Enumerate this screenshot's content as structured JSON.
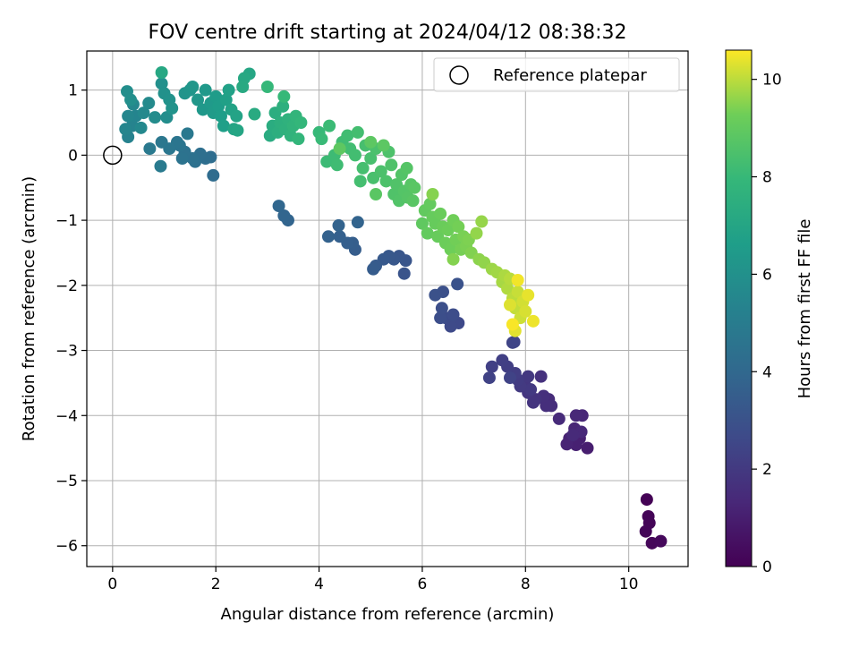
{
  "chart_data": {
    "type": "scatter",
    "title": "FOV centre drift starting at 2024/04/12 08:38:32",
    "xlabel": "Angular distance from reference (arcmin)",
    "ylabel": "Rotation from reference (arcmin)",
    "xlim": [
      -0.5,
      11.15
    ],
    "ylim": [
      -6.32,
      1.6
    ],
    "xticks": [
      0,
      2,
      4,
      6,
      8,
      10
    ],
    "yticks": [
      -6,
      -5,
      -4,
      -3,
      -2,
      -1,
      0,
      1
    ],
    "xtick_labels": [
      "0",
      "2",
      "4",
      "6",
      "8",
      "10"
    ],
    "ytick_labels": [
      "−6",
      "−5",
      "−4",
      "−3",
      "−2",
      "−1",
      "0",
      "1"
    ],
    "grid": true,
    "legend": {
      "position": "top-right",
      "entries": [
        {
          "label": "Reference platepar",
          "marker": "open-circle"
        }
      ]
    },
    "reference_point": {
      "x": 0,
      "y": 0
    },
    "colorbar": {
      "label": "Hours from first FF file",
      "colormap": "viridis",
      "range": [
        0,
        10.6
      ],
      "ticks": [
        0,
        2,
        4,
        6,
        8,
        10
      ],
      "tick_labels": [
        "0",
        "2",
        "4",
        "6",
        "8",
        "10"
      ]
    },
    "points": [
      {
        "x": 10.35,
        "y": -5.29,
        "t": 0.05
      },
      {
        "x": 10.38,
        "y": -5.55,
        "t": 0.1
      },
      {
        "x": 10.4,
        "y": -5.65,
        "t": 0.12
      },
      {
        "x": 10.33,
        "y": -5.78,
        "t": 0.15
      },
      {
        "x": 10.45,
        "y": -5.96,
        "t": 0.2
      },
      {
        "x": 10.62,
        "y": -5.93,
        "t": 0.25
      },
      {
        "x": 9.2,
        "y": -4.5,
        "t": 1.0
      },
      {
        "x": 9.05,
        "y": -4.35,
        "t": 1.05
      },
      {
        "x": 8.98,
        "y": -4.45,
        "t": 1.1
      },
      {
        "x": 8.85,
        "y": -4.35,
        "t": 1.15
      },
      {
        "x": 8.8,
        "y": -4.44,
        "t": 1.2
      },
      {
        "x": 8.95,
        "y": -4.2,
        "t": 1.25
      },
      {
        "x": 9.1,
        "y": -4.0,
        "t": 1.3
      },
      {
        "x": 8.98,
        "y": -4.0,
        "t": 1.35
      },
      {
        "x": 9.08,
        "y": -4.25,
        "t": 1.38
      },
      {
        "x": 8.92,
        "y": -4.3,
        "t": 1.4
      },
      {
        "x": 8.65,
        "y": -4.05,
        "t": 1.45
      },
      {
        "x": 8.45,
        "y": -3.75,
        "t": 1.5
      },
      {
        "x": 8.5,
        "y": -3.85,
        "t": 1.55
      },
      {
        "x": 8.4,
        "y": -3.85,
        "t": 1.6
      },
      {
        "x": 8.35,
        "y": -3.7,
        "t": 1.65
      },
      {
        "x": 8.3,
        "y": -3.4,
        "t": 1.7
      },
      {
        "x": 8.2,
        "y": -3.75,
        "t": 1.75
      },
      {
        "x": 8.15,
        "y": -3.8,
        "t": 1.8
      },
      {
        "x": 8.05,
        "y": -3.65,
        "t": 1.85
      },
      {
        "x": 8.0,
        "y": -3.55,
        "t": 1.9
      },
      {
        "x": 8.05,
        "y": -3.4,
        "t": 1.95
      },
      {
        "x": 8.1,
        "y": -3.6,
        "t": 2.0
      },
      {
        "x": 7.9,
        "y": -3.55,
        "t": 2.05
      },
      {
        "x": 7.85,
        "y": -3.45,
        "t": 2.1
      },
      {
        "x": 7.8,
        "y": -3.35,
        "t": 2.15
      },
      {
        "x": 7.65,
        "y": -3.25,
        "t": 2.2
      },
      {
        "x": 7.55,
        "y": -3.15,
        "t": 2.25
      },
      {
        "x": 7.35,
        "y": -3.25,
        "t": 2.3
      },
      {
        "x": 7.3,
        "y": -3.42,
        "t": 2.35
      },
      {
        "x": 7.7,
        "y": -3.42,
        "t": 2.4
      },
      {
        "x": 7.75,
        "y": -2.88,
        "t": 2.45
      },
      {
        "x": 7.78,
        "y": -2.87,
        "t": 2.5
      },
      {
        "x": 6.62,
        "y": -2.55,
        "t": 2.6
      },
      {
        "x": 6.7,
        "y": -2.58,
        "t": 2.65
      },
      {
        "x": 6.55,
        "y": -2.63,
        "t": 2.7
      },
      {
        "x": 6.45,
        "y": -2.5,
        "t": 2.75
      },
      {
        "x": 6.6,
        "y": -2.45,
        "t": 2.8
      },
      {
        "x": 6.35,
        "y": -2.5,
        "t": 2.85
      },
      {
        "x": 6.38,
        "y": -2.35,
        "t": 2.9
      },
      {
        "x": 6.4,
        "y": -2.1,
        "t": 2.95
      },
      {
        "x": 6.25,
        "y": -2.15,
        "t": 3.0
      },
      {
        "x": 6.68,
        "y": -1.98,
        "t": 3.05
      },
      {
        "x": 5.65,
        "y": -1.82,
        "t": 3.1
      },
      {
        "x": 5.68,
        "y": -1.62,
        "t": 3.15
      },
      {
        "x": 5.55,
        "y": -1.55,
        "t": 3.2
      },
      {
        "x": 5.45,
        "y": -1.6,
        "t": 3.25
      },
      {
        "x": 5.35,
        "y": -1.55,
        "t": 3.3
      },
      {
        "x": 5.25,
        "y": -1.6,
        "t": 3.35
      },
      {
        "x": 5.1,
        "y": -1.7,
        "t": 3.4
      },
      {
        "x": 5.05,
        "y": -1.75,
        "t": 3.45
      },
      {
        "x": 4.7,
        "y": -1.45,
        "t": 3.5
      },
      {
        "x": 4.65,
        "y": -1.35,
        "t": 3.55
      },
      {
        "x": 4.55,
        "y": -1.35,
        "t": 3.6
      },
      {
        "x": 4.4,
        "y": -1.25,
        "t": 3.65
      },
      {
        "x": 4.18,
        "y": -1.25,
        "t": 3.7
      },
      {
        "x": 4.38,
        "y": -1.08,
        "t": 3.75
      },
      {
        "x": 4.75,
        "y": -1.03,
        "t": 3.8
      },
      {
        "x": 3.4,
        "y": -1.0,
        "t": 3.85
      },
      {
        "x": 3.32,
        "y": -0.93,
        "t": 3.9
      },
      {
        "x": 3.22,
        "y": -0.78,
        "t": 3.95
      },
      {
        "x": 1.95,
        "y": -0.31,
        "t": 4.2
      },
      {
        "x": 1.9,
        "y": -0.03,
        "t": 4.25
      },
      {
        "x": 1.8,
        "y": -0.05,
        "t": 4.3
      },
      {
        "x": 1.7,
        "y": 0.02,
        "t": 4.35
      },
      {
        "x": 1.6,
        "y": -0.1,
        "t": 4.4
      },
      {
        "x": 1.55,
        "y": -0.05,
        "t": 4.45
      },
      {
        "x": 1.4,
        "y": 0.05,
        "t": 4.5
      },
      {
        "x": 1.35,
        "y": -0.05,
        "t": 4.55
      },
      {
        "x": 1.3,
        "y": 0.15,
        "t": 4.6
      },
      {
        "x": 1.25,
        "y": 0.2,
        "t": 4.65
      },
      {
        "x": 1.1,
        "y": 0.1,
        "t": 4.7
      },
      {
        "x": 0.95,
        "y": 0.2,
        "t": 4.75
      },
      {
        "x": 1.45,
        "y": 0.33,
        "t": 4.8
      },
      {
        "x": 0.72,
        "y": 0.1,
        "t": 4.85
      },
      {
        "x": 0.93,
        "y": -0.17,
        "t": 4.9
      },
      {
        "x": 0.3,
        "y": 0.28,
        "t": 5.3
      },
      {
        "x": 0.38,
        "y": 0.45,
        "t": 5.35
      },
      {
        "x": 0.45,
        "y": 0.6,
        "t": 5.4
      },
      {
        "x": 0.25,
        "y": 0.4,
        "t": 5.45
      },
      {
        "x": 0.3,
        "y": 0.6,
        "t": 5.5
      },
      {
        "x": 0.4,
        "y": 0.78,
        "t": 5.55
      },
      {
        "x": 0.55,
        "y": 0.42,
        "t": 5.6
      },
      {
        "x": 0.6,
        "y": 0.65,
        "t": 5.65
      },
      {
        "x": 0.7,
        "y": 0.8,
        "t": 5.7
      },
      {
        "x": 0.82,
        "y": 0.58,
        "t": 5.75
      },
      {
        "x": 1.05,
        "y": 0.58,
        "t": 5.8
      },
      {
        "x": 0.28,
        "y": 0.98,
        "t": 5.85
      },
      {
        "x": 0.35,
        "y": 0.85,
        "t": 5.9
      },
      {
        "x": 0.95,
        "y": 1.1,
        "t": 5.95
      },
      {
        "x": 1.0,
        "y": 0.95,
        "t": 6.0
      },
      {
        "x": 1.1,
        "y": 0.85,
        "t": 6.05
      },
      {
        "x": 1.15,
        "y": 0.72,
        "t": 6.1
      },
      {
        "x": 1.4,
        "y": 0.95,
        "t": 6.15
      },
      {
        "x": 1.5,
        "y": 1.0,
        "t": 6.2
      },
      {
        "x": 1.55,
        "y": 1.05,
        "t": 6.25
      },
      {
        "x": 1.65,
        "y": 0.85,
        "t": 6.3
      },
      {
        "x": 1.75,
        "y": 0.7,
        "t": 6.35
      },
      {
        "x": 1.8,
        "y": 1.0,
        "t": 6.4
      },
      {
        "x": 1.9,
        "y": 0.8,
        "t": 6.45
      },
      {
        "x": 1.95,
        "y": 0.65,
        "t": 6.5
      },
      {
        "x": 2.0,
        "y": 0.9,
        "t": 6.55
      },
      {
        "x": 2.05,
        "y": 0.75,
        "t": 6.6
      },
      {
        "x": 2.1,
        "y": 0.6,
        "t": 6.65
      },
      {
        "x": 2.15,
        "y": 0.45,
        "t": 6.7
      },
      {
        "x": 2.2,
        "y": 0.85,
        "t": 6.75
      },
      {
        "x": 2.25,
        "y": 1.0,
        "t": 6.8
      },
      {
        "x": 2.3,
        "y": 0.7,
        "t": 6.85
      },
      {
        "x": 2.4,
        "y": 0.6,
        "t": 6.9
      },
      {
        "x": 2.35,
        "y": 0.4,
        "t": 6.95
      },
      {
        "x": 2.42,
        "y": 0.38,
        "t": 7.0
      },
      {
        "x": 2.65,
        "y": 1.25,
        "t": 7.05
      },
      {
        "x": 0.95,
        "y": 1.27,
        "t": 7.1
      },
      {
        "x": 2.55,
        "y": 1.18,
        "t": 7.15
      },
      {
        "x": 2.52,
        "y": 1.05,
        "t": 7.2
      },
      {
        "x": 2.75,
        "y": 0.63,
        "t": 7.25
      },
      {
        "x": 3.05,
        "y": 0.3,
        "t": 7.3
      },
      {
        "x": 3.1,
        "y": 0.45,
        "t": 7.35
      },
      {
        "x": 3.15,
        "y": 0.65,
        "t": 7.4
      },
      {
        "x": 3.2,
        "y": 0.35,
        "t": 7.45
      },
      {
        "x": 3.25,
        "y": 0.5,
        "t": 7.5
      },
      {
        "x": 3.3,
        "y": 0.75,
        "t": 7.55
      },
      {
        "x": 3.35,
        "y": 0.4,
        "t": 7.6
      },
      {
        "x": 3.4,
        "y": 0.55,
        "t": 7.65
      },
      {
        "x": 3.45,
        "y": 0.3,
        "t": 7.7
      },
      {
        "x": 3.5,
        "y": 0.45,
        "t": 7.75
      },
      {
        "x": 3.55,
        "y": 0.6,
        "t": 7.8
      },
      {
        "x": 3.6,
        "y": 0.25,
        "t": 7.85
      },
      {
        "x": 3.65,
        "y": 0.5,
        "t": 7.9
      },
      {
        "x": 3.0,
        "y": 1.05,
        "t": 7.95
      },
      {
        "x": 3.32,
        "y": 0.9,
        "t": 7.98
      },
      {
        "x": 4.0,
        "y": 0.35,
        "t": 8.0
      },
      {
        "x": 4.05,
        "y": 0.25,
        "t": 8.05
      },
      {
        "x": 4.2,
        "y": 0.45,
        "t": 8.1
      },
      {
        "x": 4.15,
        "y": -0.1,
        "t": 8.12
      },
      {
        "x": 4.3,
        "y": 0.0,
        "t": 8.15
      },
      {
        "x": 4.35,
        "y": -0.15,
        "t": 8.18
      },
      {
        "x": 4.45,
        "y": 0.2,
        "t": 8.2
      },
      {
        "x": 4.55,
        "y": 0.3,
        "t": 8.22
      },
      {
        "x": 4.6,
        "y": 0.1,
        "t": 8.25
      },
      {
        "x": 4.7,
        "y": 0.0,
        "t": 8.28
      },
      {
        "x": 4.75,
        "y": 0.35,
        "t": 8.3
      },
      {
        "x": 4.8,
        "y": -0.4,
        "t": 8.33
      },
      {
        "x": 4.85,
        "y": -0.2,
        "t": 8.35
      },
      {
        "x": 4.9,
        "y": 0.15,
        "t": 8.38
      },
      {
        "x": 5.0,
        "y": -0.05,
        "t": 8.4
      },
      {
        "x": 5.05,
        "y": -0.35,
        "t": 8.42
      },
      {
        "x": 5.1,
        "y": 0.1,
        "t": 8.45
      },
      {
        "x": 5.2,
        "y": -0.25,
        "t": 8.48
      },
      {
        "x": 5.3,
        "y": -0.4,
        "t": 8.5
      },
      {
        "x": 5.35,
        "y": 0.05,
        "t": 8.52
      },
      {
        "x": 5.4,
        "y": -0.15,
        "t": 8.55
      },
      {
        "x": 5.45,
        "y": -0.6,
        "t": 8.58
      },
      {
        "x": 5.5,
        "y": -0.45,
        "t": 8.6
      },
      {
        "x": 5.55,
        "y": -0.7,
        "t": 8.62
      },
      {
        "x": 5.6,
        "y": -0.3,
        "t": 8.65
      },
      {
        "x": 5.65,
        "y": -0.55,
        "t": 8.68
      },
      {
        "x": 5.7,
        "y": -0.2,
        "t": 8.7
      },
      {
        "x": 5.72,
        "y": -0.65,
        "t": 8.72
      },
      {
        "x": 5.78,
        "y": -0.45,
        "t": 8.75
      },
      {
        "x": 5.82,
        "y": -0.7,
        "t": 8.78
      },
      {
        "x": 5.85,
        "y": -0.5,
        "t": 8.8
      },
      {
        "x": 5.1,
        "y": -0.6,
        "t": 8.82
      },
      {
        "x": 5.25,
        "y": 0.15,
        "t": 8.85
      },
      {
        "x": 5.0,
        "y": 0.2,
        "t": 8.88
      },
      {
        "x": 4.4,
        "y": 0.1,
        "t": 8.9
      },
      {
        "x": 6.0,
        "y": -1.05,
        "t": 8.95
      },
      {
        "x": 6.05,
        "y": -0.85,
        "t": 9.0
      },
      {
        "x": 6.1,
        "y": -1.2,
        "t": 9.02
      },
      {
        "x": 6.15,
        "y": -0.75,
        "t": 9.05
      },
      {
        "x": 6.2,
        "y": -0.95,
        "t": 9.08
      },
      {
        "x": 6.25,
        "y": -1.05,
        "t": 9.1
      },
      {
        "x": 6.3,
        "y": -1.25,
        "t": 9.12
      },
      {
        "x": 6.35,
        "y": -0.9,
        "t": 9.15
      },
      {
        "x": 6.4,
        "y": -1.1,
        "t": 9.18
      },
      {
        "x": 6.45,
        "y": -1.35,
        "t": 9.2
      },
      {
        "x": 6.5,
        "y": -1.15,
        "t": 9.22
      },
      {
        "x": 6.55,
        "y": -1.45,
        "t": 9.25
      },
      {
        "x": 6.6,
        "y": -1.0,
        "t": 9.28
      },
      {
        "x": 6.65,
        "y": -1.3,
        "t": 9.3
      },
      {
        "x": 6.7,
        "y": -1.1,
        "t": 9.32
      },
      {
        "x": 6.75,
        "y": -1.45,
        "t": 9.35
      },
      {
        "x": 6.8,
        "y": -1.25,
        "t": 9.38
      },
      {
        "x": 6.85,
        "y": -1.4,
        "t": 9.4
      },
      {
        "x": 6.9,
        "y": -1.3,
        "t": 9.42
      },
      {
        "x": 6.95,
        "y": -1.5,
        "t": 9.45
      },
      {
        "x": 6.6,
        "y": -1.6,
        "t": 9.48
      },
      {
        "x": 6.2,
        "y": -0.6,
        "t": 9.5
      },
      {
        "x": 7.1,
        "y": -1.6,
        "t": 9.55
      },
      {
        "x": 7.2,
        "y": -1.65,
        "t": 9.6
      },
      {
        "x": 7.05,
        "y": -1.2,
        "t": 9.62
      },
      {
        "x": 7.15,
        "y": -1.02,
        "t": 9.65
      },
      {
        "x": 7.35,
        "y": -1.75,
        "t": 9.7
      },
      {
        "x": 7.45,
        "y": -1.8,
        "t": 9.75
      },
      {
        "x": 7.55,
        "y": -1.95,
        "t": 9.8
      },
      {
        "x": 7.6,
        "y": -1.85,
        "t": 9.85
      },
      {
        "x": 7.65,
        "y": -2.05,
        "t": 9.9
      },
      {
        "x": 7.7,
        "y": -1.9,
        "t": 9.95
      },
      {
        "x": 7.75,
        "y": -2.2,
        "t": 10.0
      },
      {
        "x": 7.8,
        "y": -2.35,
        "t": 10.05
      },
      {
        "x": 7.85,
        "y": -2.1,
        "t": 10.1
      },
      {
        "x": 7.9,
        "y": -2.5,
        "t": 10.15
      },
      {
        "x": 7.95,
        "y": -2.25,
        "t": 10.2
      },
      {
        "x": 8.0,
        "y": -2.4,
        "t": 10.25
      },
      {
        "x": 7.7,
        "y": -2.3,
        "t": 10.3
      },
      {
        "x": 7.8,
        "y": -2.7,
        "t": 10.35
      },
      {
        "x": 8.05,
        "y": -2.15,
        "t": 10.4
      },
      {
        "x": 8.15,
        "y": -2.55,
        "t": 10.45
      },
      {
        "x": 7.85,
        "y": -1.92,
        "t": 10.5
      },
      {
        "x": 7.75,
        "y": -2.6,
        "t": 10.55
      }
    ]
  }
}
